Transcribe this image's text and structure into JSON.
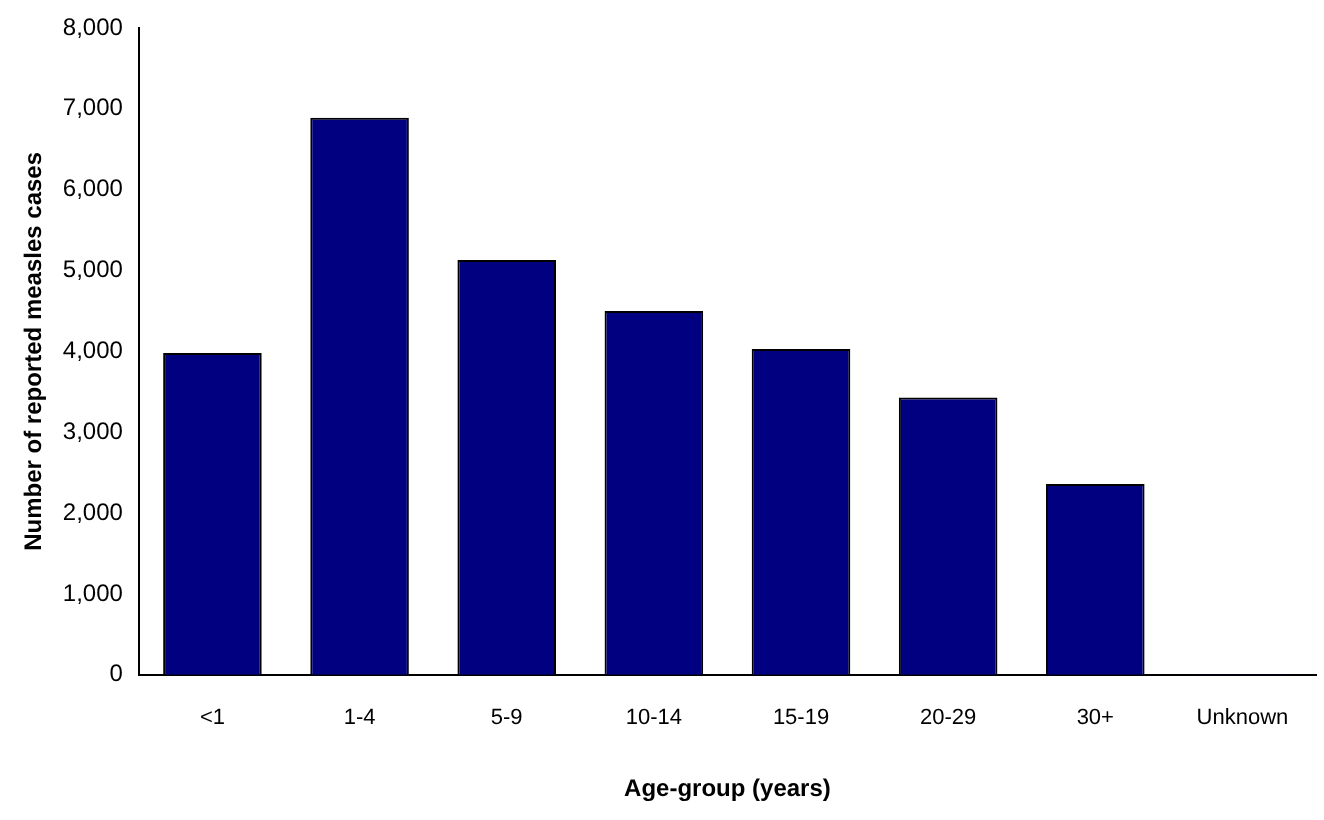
{
  "chart_data": {
    "type": "bar",
    "xlabel": "Age-group (years)",
    "ylabel": "Number of reported measles cases",
    "categories": [
      "<1",
      "1-4",
      "5-9",
      "10-14",
      "15-19",
      "20-29",
      "30+",
      "Unknown"
    ],
    "values": [
      3980,
      6890,
      5130,
      4500,
      4030,
      3430,
      2360,
      10
    ],
    "color": "#000080",
    "ylim": [
      0,
      8000
    ],
    "yticks": [
      0,
      {
        "value": 1000,
        "label": "1,000"
      },
      {
        "value": 2000,
        "label": "2,000"
      },
      {
        "value": 3000,
        "label": "3,000"
      },
      {
        "value": 4000,
        "label": "4,000"
      },
      {
        "value": 5000,
        "label": "5,000"
      },
      {
        "value": 6000,
        "label": "6,000"
      },
      {
        "value": 7000,
        "label": "7,000"
      },
      {
        "value": 8000,
        "label": "8,000"
      }
    ],
    "grid": false,
    "legend": false
  }
}
